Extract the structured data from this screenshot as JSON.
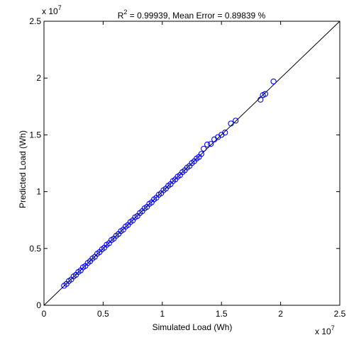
{
  "chart_data": {
    "type": "scatter",
    "title_prefix": "R",
    "title_sup": "2",
    "title_rest": " = 0.99939, Mean Error = 0.89839 %",
    "xlabel": "Simulated Load (Wh)",
    "ylabel": "Predicted Load (Wh)",
    "x_exponent_base": "x 10",
    "x_exponent_power": "7",
    "y_exponent_base": "x 10",
    "y_exponent_power": "7",
    "xlim": [
      0,
      2.5
    ],
    "ylim": [
      0,
      2.5
    ],
    "x_ticks": [
      "0",
      "0.5",
      "1",
      "1.5",
      "2",
      "2.5"
    ],
    "y_ticks": [
      "0",
      "0.5",
      "1",
      "1.5",
      "2",
      "2.5"
    ],
    "grid": false,
    "reference_line": {
      "from": [
        0,
        0
      ],
      "to": [
        2.5,
        2.5
      ]
    },
    "marker": "circle-open",
    "series_color": "#0000ff",
    "points": [
      [
        0.17,
        0.172
      ],
      [
        0.19,
        0.188
      ],
      [
        0.21,
        0.213
      ],
      [
        0.23,
        0.227
      ],
      [
        0.25,
        0.254
      ],
      [
        0.27,
        0.268
      ],
      [
        0.29,
        0.293
      ],
      [
        0.31,
        0.307
      ],
      [
        0.33,
        0.334
      ],
      [
        0.35,
        0.346
      ],
      [
        0.37,
        0.372
      ],
      [
        0.39,
        0.388
      ],
      [
        0.41,
        0.412
      ],
      [
        0.43,
        0.427
      ],
      [
        0.45,
        0.454
      ],
      [
        0.47,
        0.468
      ],
      [
        0.49,
        0.492
      ],
      [
        0.51,
        0.507
      ],
      [
        0.53,
        0.533
      ],
      [
        0.55,
        0.546
      ],
      [
        0.57,
        0.574
      ],
      [
        0.59,
        0.587
      ],
      [
        0.61,
        0.612
      ],
      [
        0.63,
        0.628
      ],
      [
        0.65,
        0.653
      ],
      [
        0.67,
        0.666
      ],
      [
        0.69,
        0.693
      ],
      [
        0.71,
        0.707
      ],
      [
        0.73,
        0.732
      ],
      [
        0.75,
        0.747
      ],
      [
        0.77,
        0.774
      ],
      [
        0.79,
        0.786
      ],
      [
        0.81,
        0.812
      ],
      [
        0.83,
        0.828
      ],
      [
        0.85,
        0.853
      ],
      [
        0.87,
        0.866
      ],
      [
        0.89,
        0.893
      ],
      [
        0.91,
        0.906
      ],
      [
        0.93,
        0.932
      ],
      [
        0.95,
        0.947
      ],
      [
        0.97,
        0.973
      ],
      [
        0.99,
        0.986
      ],
      [
        1.01,
        1.012
      ],
      [
        1.03,
        1.027
      ],
      [
        1.05,
        1.052
      ],
      [
        1.07,
        1.066
      ],
      [
        1.09,
        1.093
      ],
      [
        1.11,
        1.108
      ],
      [
        1.13,
        1.132
      ],
      [
        1.15,
        1.146
      ],
      [
        1.17,
        1.172
      ],
      [
        1.19,
        1.188
      ],
      [
        1.21,
        1.212
      ],
      [
        1.23,
        1.226
      ],
      [
        1.25,
        1.252
      ],
      [
        1.27,
        1.268
      ],
      [
        1.29,
        1.292
      ],
      [
        1.31,
        1.306
      ],
      [
        1.33,
        1.332
      ],
      [
        1.35,
        1.378
      ],
      [
        1.38,
        1.415
      ],
      [
        1.41,
        1.42
      ],
      [
        1.44,
        1.46
      ],
      [
        1.47,
        1.48
      ],
      [
        1.5,
        1.5
      ],
      [
        1.53,
        1.52
      ],
      [
        1.58,
        1.6
      ],
      [
        1.62,
        1.625
      ],
      [
        1.83,
        1.81
      ],
      [
        1.85,
        1.85
      ],
      [
        1.87,
        1.86
      ],
      [
        1.94,
        1.97
      ]
    ]
  }
}
